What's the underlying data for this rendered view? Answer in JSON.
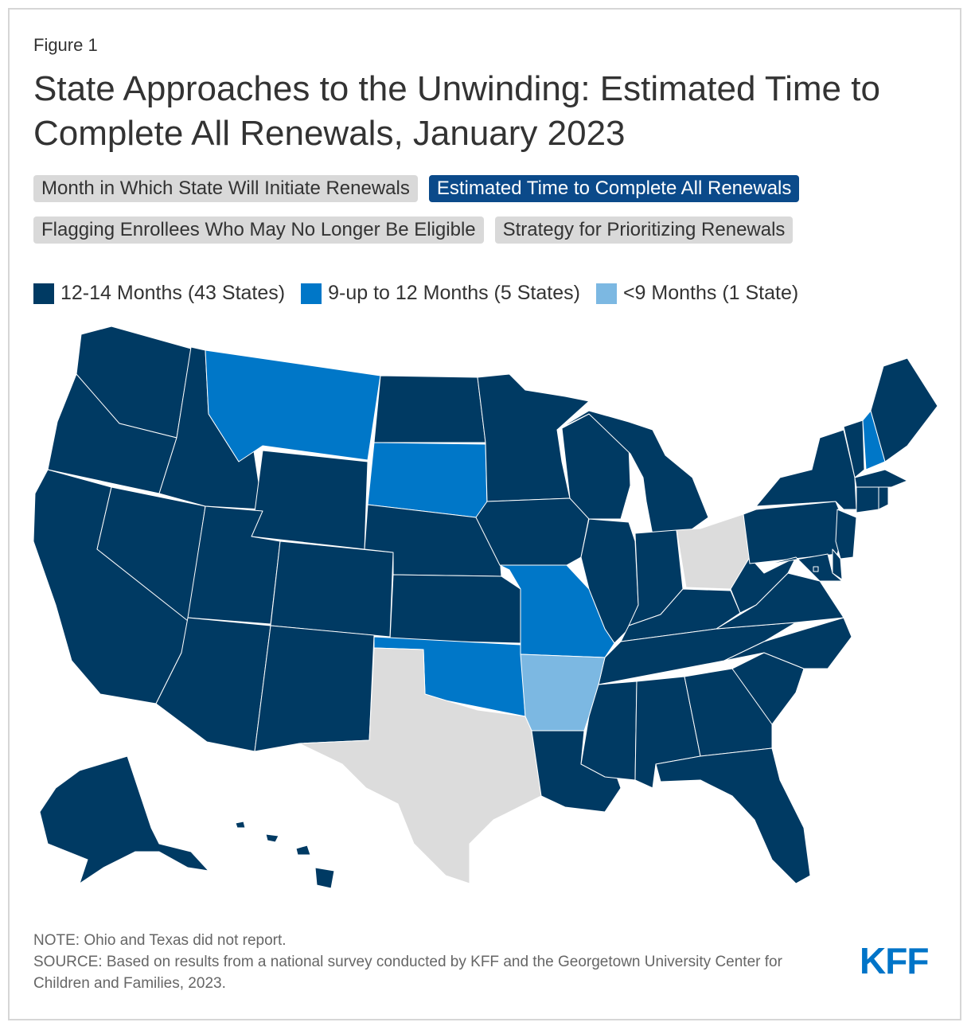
{
  "figure_label": "Figure 1",
  "title": "State Approaches to the Unwinding: Estimated Time to Complete All Renewals, January 2023",
  "tabs": [
    {
      "label": "Month in Which State Will Initiate Renewals",
      "active": false
    },
    {
      "label": "Estimated Time to Complete All Renewals",
      "active": true
    },
    {
      "label": "Flagging Enrollees Who May No Longer Be Eligible",
      "active": false
    },
    {
      "label": "Strategy for Prioritizing Renewals",
      "active": false
    }
  ],
  "legend": [
    {
      "label": "12-14 Months (43 States)",
      "color": "#003a63"
    },
    {
      "label": "9-up to 12 Months (5 States)",
      "color": "#0077c8"
    },
    {
      "label": "<9 Months (1 State)",
      "color": "#7cb8e2"
    }
  ],
  "no_data_color": "#dcdcdc",
  "map_data": {
    "categories": {
      "12-14 Months": [
        "WA",
        "OR",
        "CA",
        "NV",
        "ID",
        "UT",
        "AZ",
        "WY",
        "CO",
        "NM",
        "ND",
        "NE",
        "KS",
        "MN",
        "IA",
        "WI",
        "IL",
        "MI",
        "IN",
        "KY",
        "TN",
        "MS",
        "AL",
        "LA",
        "GA",
        "FL",
        "SC",
        "NC",
        "VA",
        "WV",
        "PA",
        "NY",
        "VT",
        "ME",
        "MA",
        "RI",
        "CT",
        "NJ",
        "DE",
        "MD",
        "DC",
        "AK",
        "HI"
      ],
      "9-up to 12 Months": [
        "MT",
        "SD",
        "MO",
        "OK",
        "NH"
      ],
      "<9 Months": [
        "AR"
      ],
      "Did not report": [
        "OH",
        "TX"
      ]
    }
  },
  "note": "NOTE: Ohio and Texas did not report.",
  "source": "SOURCE: Based on results from a national survey conducted by KFF and the Georgetown University Center for Children and Families, 2023.",
  "logo": "KFF"
}
